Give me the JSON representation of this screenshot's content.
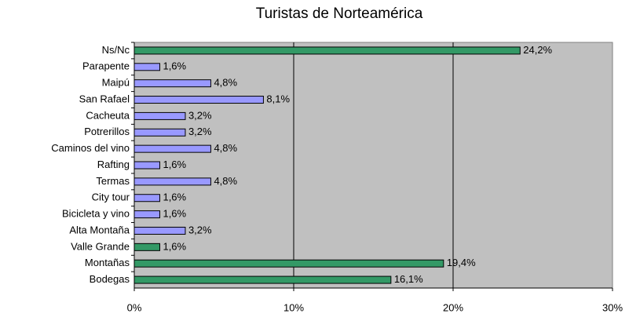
{
  "chart_data": {
    "type": "barh",
    "title": "Turistas de Norteamérica",
    "categories": [
      "Ns/Nc",
      "Parapente",
      "Maipú",
      "San Rafael",
      "Cacheuta",
      "Potrerillos",
      "Caminos del vino",
      "Rafting",
      "Termas",
      "City tour",
      "Bicicleta y vino",
      "Alta Montaña",
      "Valle Grande",
      "Montañas",
      "Bodegas"
    ],
    "values": [
      24.2,
      1.6,
      4.8,
      8.1,
      3.2,
      3.2,
      4.8,
      1.6,
      4.8,
      1.6,
      1.6,
      3.2,
      1.6,
      19.4,
      16.1
    ],
    "value_labels": [
      "24,2%",
      "1,6%",
      "4,8%",
      "8,1%",
      "3,2%",
      "3,2%",
      "4,8%",
      "1,6%",
      "4,8%",
      "1,6%",
      "1,6%",
      "3,2%",
      "1,6%",
      "19,4%",
      "16,1%"
    ],
    "colors": [
      "#339966",
      "#9999ff",
      "#9999ff",
      "#9999ff",
      "#9999ff",
      "#9999ff",
      "#9999ff",
      "#9999ff",
      "#9999ff",
      "#9999ff",
      "#9999ff",
      "#9999ff",
      "#339966",
      "#339966",
      "#339966"
    ],
    "xlim": [
      0,
      30
    ],
    "xticks": [
      {
        "value": 0,
        "label": "0%"
      },
      {
        "value": 10,
        "label": "10%"
      },
      {
        "value": 20,
        "label": "20%"
      },
      {
        "value": 30,
        "label": "30%"
      }
    ],
    "grid": true,
    "plot_background": "#c0c0c0"
  }
}
